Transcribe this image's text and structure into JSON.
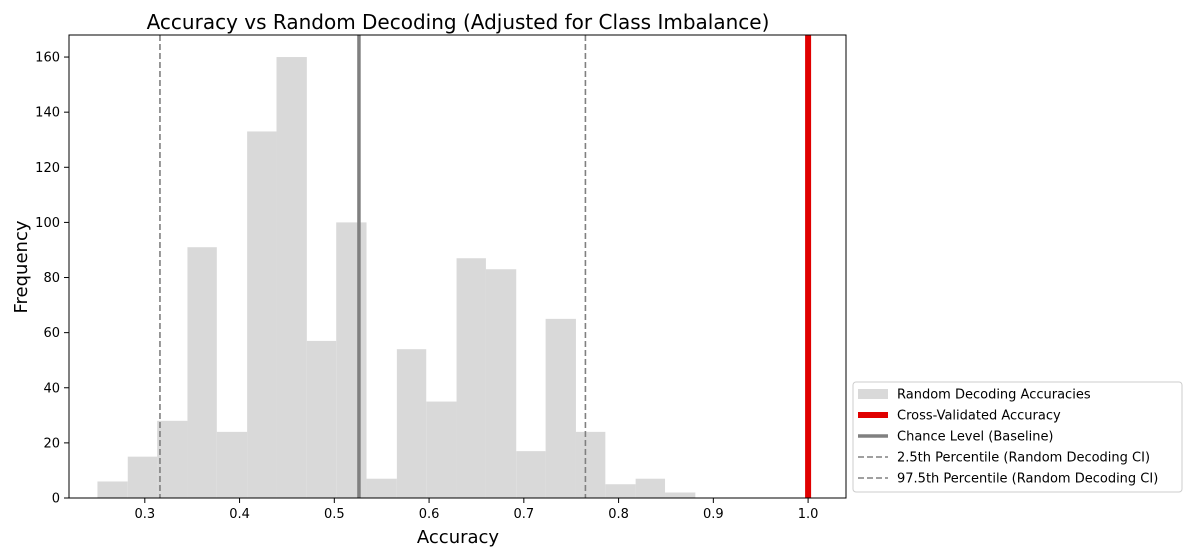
{
  "chart_data": {
    "type": "bar",
    "title": "Accuracy vs Random Decoding (Adjusted for Class Imbalance)",
    "xlabel": "Accuracy",
    "ylabel": "Frequency",
    "xlim": [
      0.22,
      1.04
    ],
    "ylim": [
      0,
      168
    ],
    "xticks": [
      0.3,
      0.4,
      0.5,
      0.6,
      0.7,
      0.8,
      0.9,
      1.0
    ],
    "xtick_labels": [
      "0.3",
      "0.4",
      "0.5",
      "0.6",
      "0.7",
      "0.8",
      "0.9",
      "1.0"
    ],
    "yticks": [
      0,
      20,
      40,
      60,
      80,
      100,
      120,
      140,
      160
    ],
    "ytick_labels": [
      "0",
      "20",
      "40",
      "60",
      "80",
      "100",
      "120",
      "140",
      "160"
    ],
    "histogram": {
      "name": "Random Decoding Accuracies",
      "color": "#d9d9d9",
      "bins": [
        {
          "x0": 0.25,
          "x1": 0.282,
          "count": 6
        },
        {
          "x0": 0.282,
          "x1": 0.313,
          "count": 15
        },
        {
          "x0": 0.313,
          "x1": 0.345,
          "count": 28
        },
        {
          "x0": 0.345,
          "x1": 0.376,
          "count": 91
        },
        {
          "x0": 0.376,
          "x1": 0.408,
          "count": 24
        },
        {
          "x0": 0.408,
          "x1": 0.439,
          "count": 133
        },
        {
          "x0": 0.439,
          "x1": 0.471,
          "count": 160
        },
        {
          "x0": 0.471,
          "x1": 0.502,
          "count": 57
        },
        {
          "x0": 0.502,
          "x1": 0.534,
          "count": 100
        },
        {
          "x0": 0.534,
          "x1": 0.566,
          "count": 7
        },
        {
          "x0": 0.566,
          "x1": 0.597,
          "count": 54
        },
        {
          "x0": 0.597,
          "x1": 0.629,
          "count": 35
        },
        {
          "x0": 0.629,
          "x1": 0.66,
          "count": 87
        },
        {
          "x0": 0.66,
          "x1": 0.692,
          "count": 83
        },
        {
          "x0": 0.692,
          "x1": 0.723,
          "count": 17
        },
        {
          "x0": 0.723,
          "x1": 0.755,
          "count": 65
        },
        {
          "x0": 0.755,
          "x1": 0.786,
          "count": 24
        },
        {
          "x0": 0.786,
          "x1": 0.818,
          "count": 5
        },
        {
          "x0": 0.818,
          "x1": 0.849,
          "count": 7
        },
        {
          "x0": 0.849,
          "x1": 0.881,
          "count": 2
        }
      ]
    },
    "vlines": [
      {
        "name": "Cross-Validated Accuracy",
        "x": 1.0,
        "color": "#e00000",
        "style": "solid",
        "weight": "thick"
      },
      {
        "name": "Chance Level (Baseline)",
        "x": 0.526,
        "color": "#808080",
        "style": "solid",
        "weight": "medium"
      },
      {
        "name": "2.5th Percentile (Random Decoding CI)",
        "x": 0.316,
        "color": "#808080",
        "style": "dashed",
        "weight": "thin"
      },
      {
        "name": "97.5th Percentile (Random Decoding CI)",
        "x": 0.765,
        "color": "#808080",
        "style": "dashed",
        "weight": "thin"
      }
    ],
    "legend_position": "outside-right-bottom",
    "grid": false
  }
}
